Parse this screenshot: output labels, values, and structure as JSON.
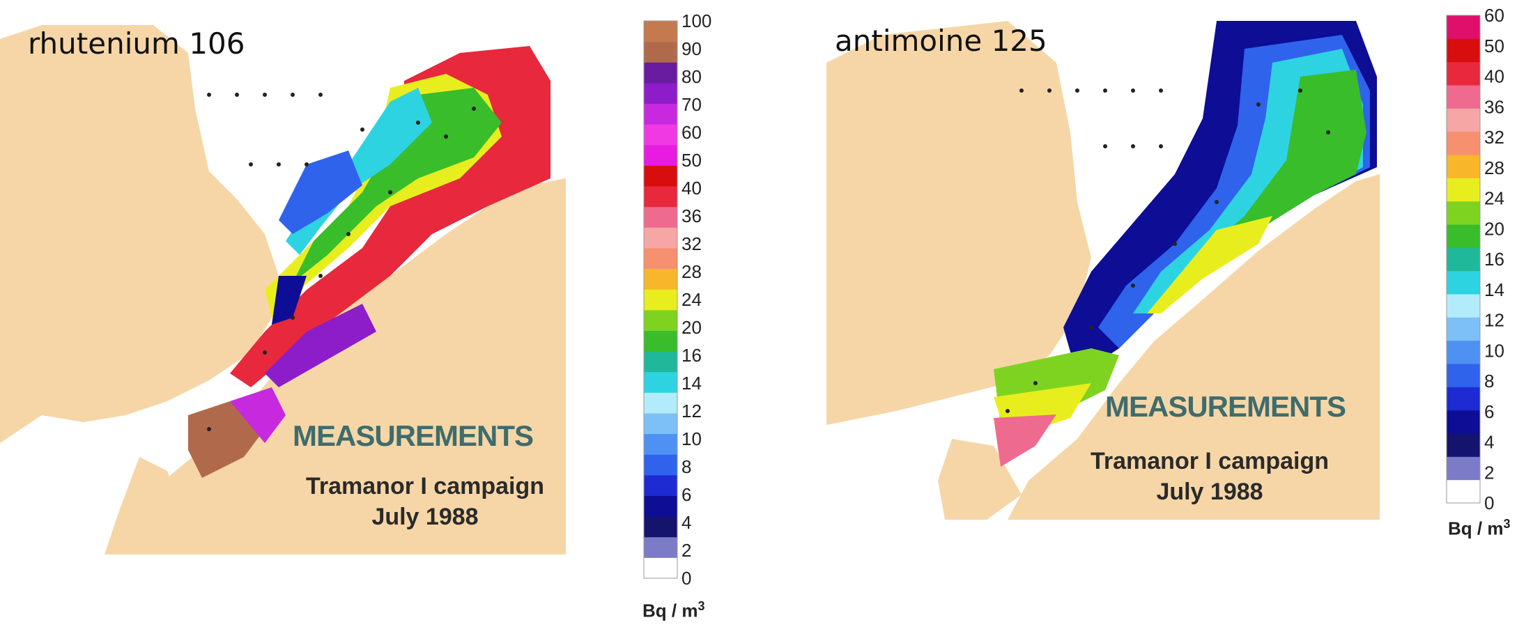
{
  "maps": [
    {
      "title": "rhutenium 106",
      "measurements_label": "MEASUREMENTS",
      "campaign": "Tramanor I campaign",
      "date": "July 1988",
      "legend": {
        "unit": "Bq / m",
        "unit_superscript": "3",
        "ticks": [
          "0",
          "2",
          "4",
          "6",
          "8",
          "10",
          "12",
          "14",
          "16",
          "20",
          "24",
          "28",
          "32",
          "36",
          "40",
          "50",
          "60",
          "70",
          "80",
          "90",
          "100"
        ],
        "colors": [
          "#ffffff",
          "#7b7bc8",
          "#14146e",
          "#0d0d96",
          "#1e2ad2",
          "#2f63ec",
          "#4e91f2",
          "#7cc0f7",
          "#b2ecfa",
          "#2ed3e2",
          "#1fb89a",
          "#39bd2a",
          "#7ed321",
          "#e8ee1e",
          "#f8b62a",
          "#f6906e",
          "#f7a6a6",
          "#ee6a8e",
          "#e8283c",
          "#d80d0d",
          "#e71ce0",
          "#f039e3",
          "#c729de",
          "#8c1dc9",
          "#6a1ca0",
          "#b06a4b",
          "#c47a4e"
        ]
      }
    },
    {
      "title": "antimoine 125",
      "measurements_label": "MEASUREMENTS",
      "campaign": "Tramanor I campaign",
      "date": "July 1988",
      "legend": {
        "unit": "Bq / m",
        "unit_superscript": "3",
        "ticks": [
          "0",
          "2",
          "4",
          "6",
          "8",
          "10",
          "12",
          "14",
          "16",
          "20",
          "24",
          "28",
          "32",
          "36",
          "40",
          "50",
          "60"
        ],
        "colors": [
          "#ffffff",
          "#7b7bc8",
          "#14146e",
          "#0d0d96",
          "#1e2ad2",
          "#2f63ec",
          "#4e91f2",
          "#7cc0f7",
          "#b2ecfa",
          "#2ed3e2",
          "#1fb89a",
          "#39bd2a",
          "#7ed321",
          "#e8ee1e",
          "#f8b62a",
          "#f6906e",
          "#f7a6a6",
          "#ee6a8e",
          "#e8283c",
          "#d80d0d",
          "#e0106a"
        ]
      }
    }
  ]
}
